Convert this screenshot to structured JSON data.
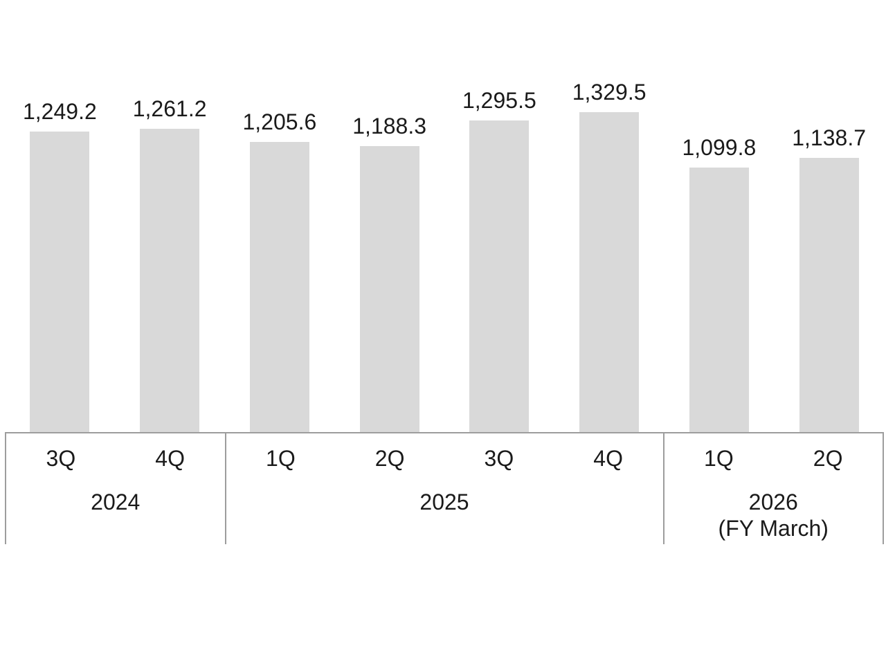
{
  "chart_data": {
    "type": "bar",
    "title": "",
    "categories": [
      "3Q 2024",
      "4Q 2024",
      "1Q 2025",
      "2Q 2025",
      "3Q 2025",
      "4Q 2025",
      "1Q 2026",
      "2Q 2026"
    ],
    "values": [
      1249.2,
      1261.2,
      1205.6,
      1188.3,
      1295.5,
      1329.5,
      1099.8,
      1138.7
    ],
    "data_labels": [
      "1,249.2",
      "1,261.2",
      "1,205.6",
      "1,188.3",
      "1,295.5",
      "1,329.5",
      "1,099.8",
      "1,138.7"
    ],
    "x_axis_groups": [
      {
        "quarters": [
          "3Q",
          "4Q"
        ],
        "year_lines": [
          "2024"
        ]
      },
      {
        "quarters": [
          "1Q",
          "2Q",
          "3Q",
          "4Q"
        ],
        "year_lines": [
          "2025"
        ]
      },
      {
        "quarters": [
          "1Q",
          "2Q"
        ],
        "year_lines": [
          "2026",
          "(FY March)"
        ]
      }
    ],
    "y_axis_visible": false,
    "gridlines": false,
    "legend": false,
    "baseline_value": 0,
    "bar_color": "#d9d9d9",
    "axis_line_color": "#9d9d9d",
    "label_color": "#1a1a1a",
    "background_color": "#ffffff"
  }
}
